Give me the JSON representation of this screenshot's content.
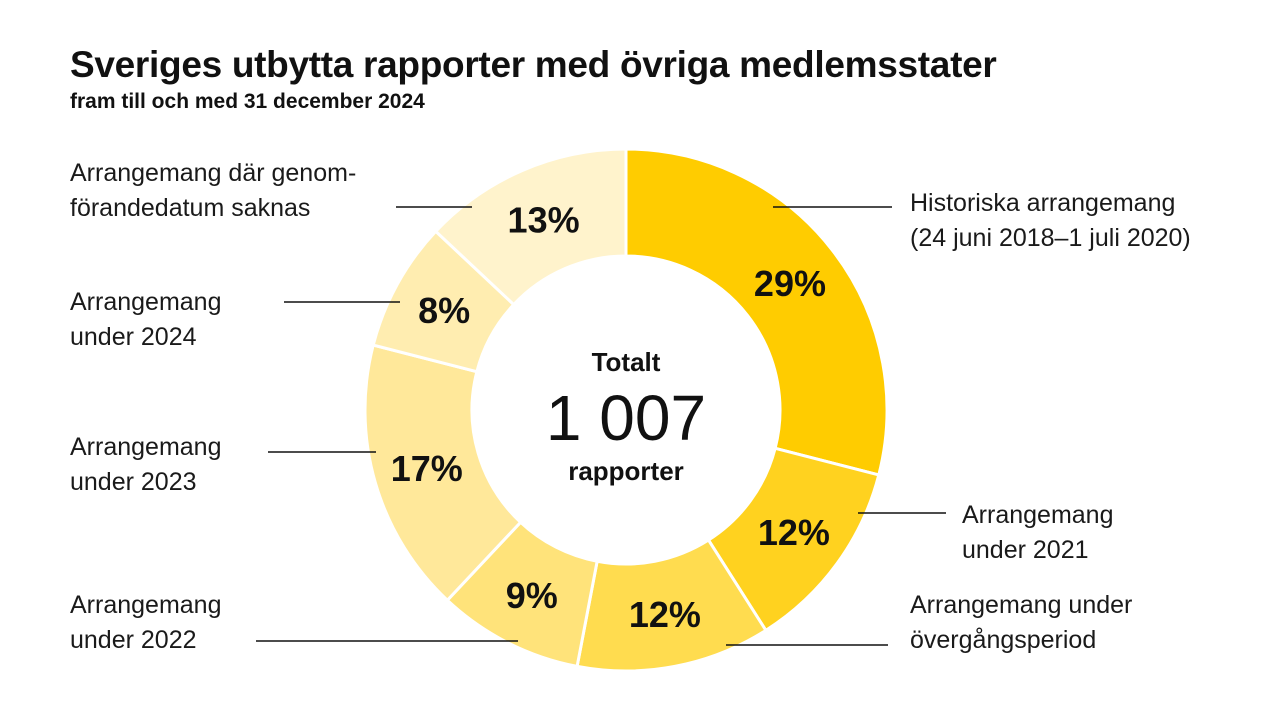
{
  "title": "Sveriges utbytta rapporter med övriga medlemsstater",
  "subtitle": "fram till och med 31 december 2024",
  "chart_data": {
    "type": "pie",
    "donut": true,
    "center": {
      "line1": "Totalt",
      "number": "1 007",
      "line2": "rapporter"
    },
    "slices": [
      {
        "label_lines": [
          "Historiska arrangemang",
          "(24 juni 2018–1 juli 2020)"
        ],
        "value": 29,
        "display": "29%",
        "color": "#FFCC00"
      },
      {
        "label_lines": [
          "Arrangemang",
          "under 2021"
        ],
        "value": 12,
        "display": "12%",
        "color": "#FFD21F"
      },
      {
        "label_lines": [
          "Arrangemang under",
          "övergångsperiod"
        ],
        "value": 12,
        "display": "12%",
        "color": "#FFDC4F"
      },
      {
        "label_lines": [
          "Arrangemang",
          "under 2022"
        ],
        "value": 9,
        "display": "9%",
        "color": "#FFE37A"
      },
      {
        "label_lines": [
          "Arrangemang",
          "under 2023"
        ],
        "value": 17,
        "display": "17%",
        "color": "#FFE89A"
      },
      {
        "label_lines": [
          "Arrangemang",
          "under 2024"
        ],
        "value": 8,
        "display": "8%",
        "color": "#FFEDB0"
      },
      {
        "label_lines": [
          "Arrangemang där genom-",
          "förandedatum saknas"
        ],
        "value": 13,
        "display": "13%",
        "color": "#FFF3CC"
      }
    ]
  }
}
